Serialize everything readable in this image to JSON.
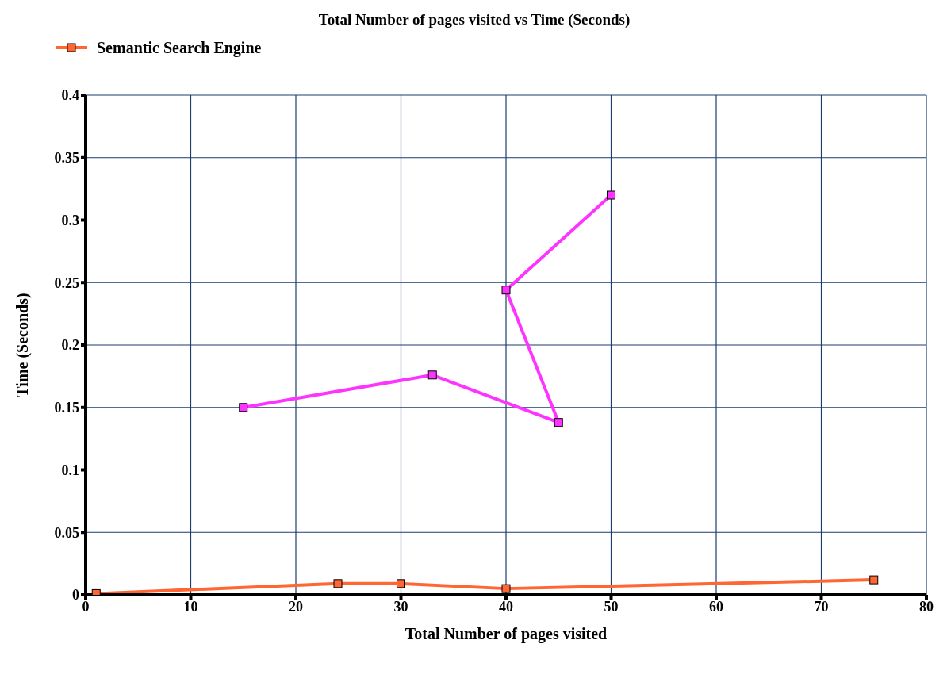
{
  "chart_data": {
    "type": "line",
    "title": "Total Number of pages visited vs Time (Seconds)",
    "xlabel": "Total Number of pages visited",
    "ylabel": "Time (Seconds)",
    "series": [
      {
        "name": "Semantic Search Engine",
        "color": "#ff6633",
        "x": [
          1,
          24,
          30,
          40,
          75
        ],
        "values": [
          0.001,
          0.009,
          0.009,
          0.005,
          0.012
        ]
      },
      {
        "color": "#ff33ff",
        "x": [
          15,
          33,
          45,
          40,
          50
        ],
        "values": [
          0.15,
          0.176,
          0.138,
          0.244,
          0.32
        ]
      }
    ],
    "xlim": [
      0,
      80
    ],
    "xticks": [
      0,
      10,
      20,
      30,
      40,
      50,
      60,
      70,
      80
    ],
    "ylim": [
      0,
      0.4
    ],
    "yticks": [
      0,
      0.05,
      0.1,
      0.15,
      0.2,
      0.25,
      0.3,
      0.35,
      0.4
    ],
    "grid": true,
    "legend": "top left",
    "marker": "square",
    "line_style": "solid"
  }
}
